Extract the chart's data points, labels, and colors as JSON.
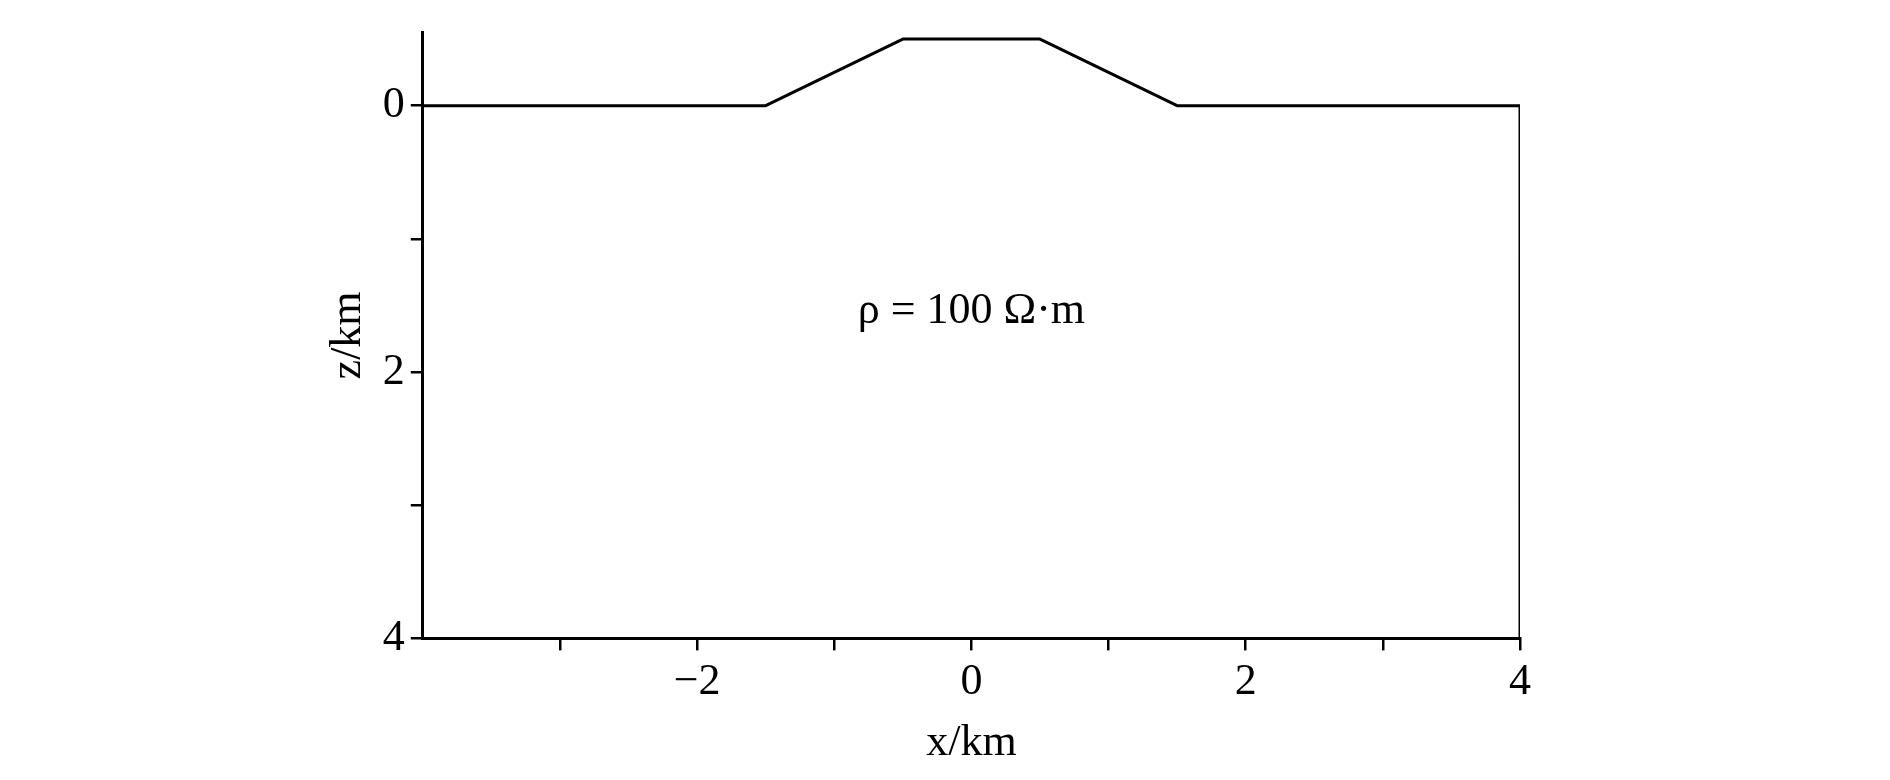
{
  "chart_data": {
    "type": "line",
    "xlabel": "x/km",
    "ylabel": "z/km",
    "series": [
      {
        "color": "#000000",
        "x": [
          -4,
          -1.5,
          -0.5,
          0.5,
          1.5,
          4,
          4
        ],
        "values": [
          0,
          0,
          -0.5,
          -0.5,
          0,
          0,
          4
        ]
      }
    ],
    "xlim": [
      -4,
      4
    ],
    "xticks": [
      {
        "value": -3,
        "label": null
      },
      -2,
      {
        "value": -1,
        "label": null
      },
      0,
      {
        "value": 1,
        "label": null
      },
      2,
      {
        "value": 3,
        "label": null
      },
      4
    ],
    "ylim": [
      4,
      -0.55
    ],
    "yticks": [
      0,
      {
        "value": 1,
        "label": null
      },
      2,
      {
        "value": 3,
        "label": null
      },
      4
    ],
    "annotations": [
      "ρ = 100 Ω·m"
    ],
    "grid": false,
    "legend": false,
    "marker": "none",
    "line_style": "solid"
  }
}
